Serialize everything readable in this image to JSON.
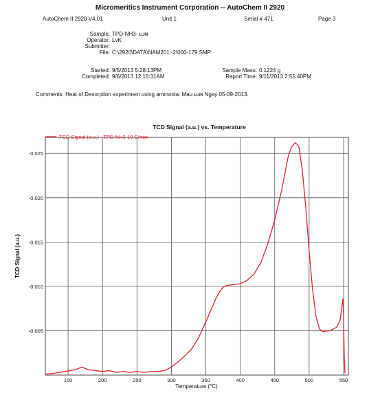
{
  "report": {
    "header_title": "Micromeritics Instrument Corporation -- AutoChem II 2920",
    "instrument": "AutoChem II 2920 V4.01",
    "unit": "Unit 1",
    "serial": "Serial # 471",
    "page": "Page 3",
    "sample_label": "Sample:",
    "sample_value": "TPD-NH3- ᴌᴜᴍ",
    "operator_label": "Operator:",
    "operator_value": "LvK",
    "submitter_label": "Submitter:",
    "submitter_value": "",
    "file_label": "File:",
    "file_value": "C:\\2920\\DATA\\NAM201~2\\000-179.SMP",
    "started_label": "Started:",
    "started_value": "9/5/2013 5:28:13PM",
    "completed_label": "Completed:",
    "completed_value": "9/6/2013 12:16:31AM",
    "mass_label": "Sample Mass:",
    "mass_value": "0.1224 g",
    "report_time_label": "Report Time:",
    "report_time_value": "9/11/2013 2:55:40PM",
    "comments": "Comments: Heat of Desorption experiment using ammonia: Mau ᴌᴜᴍ Ngay 05-09-2013."
  },
  "chart_data": {
    "type": "line",
    "title": "TCD Signal (a.u.) vs. Temperature",
    "xlabel": "Temperature (°C)",
    "ylabel": "TCD Signal (a.u.)",
    "xlim": [
      117,
      557
    ],
    "ylim": [
      0,
      0.0268
    ],
    "y_inverted": true,
    "grid": true,
    "legend_position": "top-left",
    "line_color": "#e8202a",
    "x_ticks": [
      150,
      200,
      250,
      300,
      350,
      400,
      450,
      500,
      550
    ],
    "x_tick_labels": [
      "150",
      "200",
      "250",
      "300",
      "350",
      "400",
      "450",
      "500",
      "550"
    ],
    "y_ticks": [
      0.025,
      0.02,
      0.015,
      0.01,
      0.005
    ],
    "y_tick_labels": [
      "-0.025",
      "-0.020",
      "-0.015",
      "-0.010",
      "-0.005"
    ],
    "series": [
      {
        "name": "TCD Signal (a.u.) - TPD NH3-10 C/min",
        "x": [
          117,
          130,
          145,
          160,
          170,
          180,
          190,
          200,
          210,
          220,
          230,
          240,
          250,
          260,
          270,
          280,
          290,
          300,
          310,
          320,
          330,
          340,
          350,
          360,
          365,
          370,
          375,
          380,
          390,
          400,
          410,
          420,
          430,
          440,
          450,
          460,
          465,
          470,
          475,
          480,
          485,
          490,
          495,
          500,
          505,
          510,
          515,
          520,
          530,
          540,
          545,
          549,
          550,
          551,
          552
        ],
        "y": [
          0.0001,
          0.0002,
          0.0004,
          0.0006,
          0.0009,
          0.0006,
          0.0005,
          0.0004,
          0.0005,
          0.0003,
          0.0004,
          0.0003,
          0.0004,
          0.0003,
          0.0004,
          0.0004,
          0.0005,
          0.0009,
          0.0015,
          0.0022,
          0.003,
          0.0043,
          0.006,
          0.0078,
          0.0087,
          0.0094,
          0.0099,
          0.0101,
          0.0102,
          0.0103,
          0.0107,
          0.0114,
          0.0127,
          0.0148,
          0.0175,
          0.0208,
          0.0228,
          0.0248,
          0.0258,
          0.0262,
          0.0258,
          0.0232,
          0.019,
          0.014,
          0.0096,
          0.0066,
          0.0052,
          0.0049,
          0.005,
          0.0054,
          0.0062,
          0.0086,
          0.0065,
          0.002,
          0.0002
        ]
      }
    ]
  }
}
